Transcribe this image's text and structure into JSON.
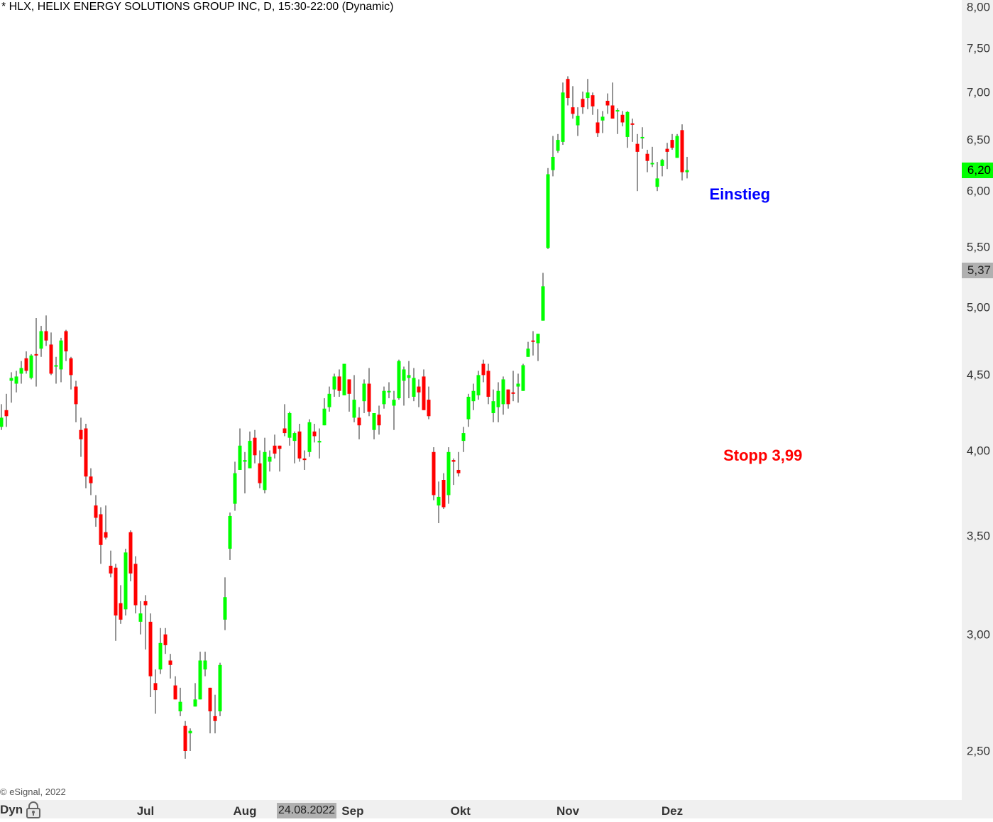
{
  "header": {
    "title": "* HLX, HELIX ENERGY SOLUTIONS GROUP INC, D, 15:30-22:00 (Dynamic)"
  },
  "footer": {
    "copyright": "© eSignal, 2022",
    "mode_label": "Dyn",
    "lock_icon": "lock-icon",
    "crosshair_date": "24.08.2022"
  },
  "colors": {
    "up": "#00ff00",
    "down": "#ff0000",
    "wick": "#707070",
    "einstieg": "#0000ff",
    "stopp": "#ff0000",
    "last_price_bg": "#00ff00",
    "marker_bg": "#b0b0b0"
  },
  "chart_data": {
    "type": "candlestick",
    "title": "* HLX, HELIX ENERGY SOLUTIONS GROUP INC, D, 15:30-22:00 (Dynamic)",
    "y_scale": "log",
    "ylim": [
      2.43,
      8.0
    ],
    "grid": false,
    "y_ticks": [
      {
        "value": 8.0,
        "label": "8,00"
      },
      {
        "value": 7.5,
        "label": "7,50"
      },
      {
        "value": 7.0,
        "label": "7,00"
      },
      {
        "value": 6.5,
        "label": "6,50"
      },
      {
        "value": 6.0,
        "label": "6,00"
      },
      {
        "value": 5.5,
        "label": "5,50"
      },
      {
        "value": 5.0,
        "label": "5,00"
      },
      {
        "value": 4.5,
        "label": "4,50"
      },
      {
        "value": 4.0,
        "label": "4,00"
      },
      {
        "value": 3.5,
        "label": "3,50"
      },
      {
        "value": 3.0,
        "label": "3,00"
      },
      {
        "value": 2.5,
        "label": "2,50"
      }
    ],
    "x_ticks": [
      {
        "label": "Jul",
        "candle": 29
      },
      {
        "label": "Aug",
        "candle": 49
      },
      {
        "label": "Sep",
        "candle": 70.7
      },
      {
        "label": "Okt",
        "candle": 92.4
      },
      {
        "label": "Nov",
        "candle": 114
      },
      {
        "label": "Dez",
        "candle": 135
      }
    ],
    "last_price": {
      "value": 6.2,
      "label": "6,20"
    },
    "marker_price": {
      "value": 5.37,
      "label": "5,37"
    },
    "annotations": [
      {
        "text": "Einstieg",
        "price": 6.0,
        "candle": 142.5,
        "color": "#0000ff"
      },
      {
        "text": "Stopp 3,99",
        "price": 3.99,
        "candle": 145.3,
        "color": "#ff0000"
      }
    ],
    "ohlc": [
      [
        4.15,
        4.3,
        4.13,
        4.21
      ],
      [
        4.26,
        4.37,
        4.15,
        4.22
      ],
      [
        4.46,
        4.52,
        4.31,
        4.48
      ],
      [
        4.44,
        4.53,
        4.38,
        4.49
      ],
      [
        4.51,
        4.6,
        4.44,
        4.55
      ],
      [
        4.62,
        4.67,
        4.51,
        4.53
      ],
      [
        4.48,
        4.65,
        4.47,
        4.64
      ],
      [
        4.65,
        4.92,
        4.42,
        4.64
      ],
      [
        4.69,
        4.86,
        4.63,
        4.82
      ],
      [
        4.82,
        4.94,
        4.71,
        4.75
      ],
      [
        4.72,
        4.81,
        4.5,
        4.51
      ],
      [
        4.56,
        4.63,
        4.44,
        4.57
      ],
      [
        4.54,
        4.77,
        4.45,
        4.75
      ],
      [
        4.82,
        4.83,
        4.6,
        4.67
      ],
      [
        4.62,
        4.63,
        4.4,
        4.5
      ],
      [
        4.42,
        4.46,
        4.18,
        4.3
      ],
      [
        4.13,
        4.21,
        3.96,
        4.07
      ],
      [
        4.14,
        4.17,
        3.77,
        3.84
      ],
      [
        3.84,
        3.89,
        3.73,
        3.8
      ],
      [
        3.67,
        3.73,
        3.55,
        3.6
      ],
      [
        3.62,
        3.66,
        3.35,
        3.45
      ],
      [
        3.52,
        3.67,
        3.48,
        3.49
      ],
      [
        3.34,
        3.42,
        3.28,
        3.3
      ],
      [
        3.33,
        3.35,
        2.97,
        3.09
      ],
      [
        3.15,
        3.24,
        3.05,
        3.07
      ],
      [
        3.12,
        3.43,
        3.09,
        3.41
      ],
      [
        3.52,
        3.53,
        3.26,
        3.3
      ],
      [
        3.35,
        3.39,
        3.1,
        3.14
      ],
      [
        3.06,
        3.16,
        3.0,
        3.1
      ],
      [
        3.16,
        3.19,
        2.93,
        3.14
      ],
      [
        3.06,
        3.1,
        2.72,
        2.81
      ],
      [
        2.78,
        2.84,
        2.65,
        2.75
      ],
      [
        2.84,
        3.03,
        2.82,
        2.96
      ],
      [
        3.0,
        3.03,
        2.91,
        2.95
      ],
      [
        2.88,
        2.91,
        2.8,
        2.86
      ],
      [
        2.77,
        2.81,
        2.71,
        2.71
      ],
      [
        2.66,
        2.76,
        2.64,
        2.7
      ],
      [
        2.6,
        2.62,
        2.47,
        2.5
      ],
      [
        2.57,
        2.59,
        2.5,
        2.58
      ],
      [
        2.68,
        2.78,
        2.68,
        2.71
      ],
      [
        2.71,
        2.92,
        2.71,
        2.88
      ],
      [
        2.84,
        2.92,
        2.81,
        2.88
      ],
      [
        2.76,
        2.76,
        2.57,
        2.66
      ],
      [
        2.64,
        2.73,
        2.57,
        2.62
      ],
      [
        2.66,
        2.87,
        2.64,
        2.86
      ],
      [
        3.07,
        3.28,
        3.02,
        3.18
      ],
      [
        3.43,
        3.63,
        3.37,
        3.61
      ],
      [
        3.68,
        3.93,
        3.64,
        3.86
      ],
      [
        3.88,
        4.14,
        3.88,
        4.03
      ],
      [
        3.93,
        3.99,
        3.74,
        3.94
      ],
      [
        3.89,
        4.12,
        3.89,
        4.06
      ],
      [
        4.08,
        4.13,
        3.92,
        3.97
      ],
      [
        3.92,
        4.0,
        3.77,
        3.8
      ],
      [
        3.76,
        4.08,
        3.74,
        3.99
      ],
      [
        3.93,
        4.0,
        3.87,
        3.96
      ],
      [
        4.03,
        4.1,
        3.95,
        3.98
      ],
      [
        4.03,
        4.03,
        3.87,
        4.01
      ],
      [
        4.14,
        4.3,
        4.09,
        4.11
      ],
      [
        4.08,
        4.25,
        4.03,
        4.24
      ],
      [
        4.06,
        4.12,
        3.92,
        4.11
      ],
      [
        4.12,
        4.17,
        3.93,
        3.95
      ],
      [
        3.95,
        4.0,
        3.88,
        3.94
      ],
      [
        3.99,
        4.2,
        3.96,
        4.18
      ],
      [
        4.12,
        4.17,
        4.05,
        4.09
      ],
      [
        4.05,
        4.14,
        3.95,
        4.06
      ],
      [
        4.16,
        4.34,
        4.16,
        4.27
      ],
      [
        4.28,
        4.42,
        4.25,
        4.37
      ],
      [
        4.4,
        4.51,
        4.35,
        4.49
      ],
      [
        4.49,
        4.54,
        4.35,
        4.39
      ],
      [
        4.36,
        4.58,
        4.36,
        4.58
      ],
      [
        4.47,
        4.47,
        4.25,
        4.37
      ],
      [
        4.21,
        4.5,
        4.18,
        4.33
      ],
      [
        4.21,
        4.28,
        4.07,
        4.16
      ],
      [
        4.32,
        4.47,
        4.24,
        4.44
      ],
      [
        4.44,
        4.55,
        4.22,
        4.25
      ],
      [
        4.13,
        4.24,
        4.07,
        4.24
      ],
      [
        4.23,
        4.29,
        4.1,
        4.16
      ],
      [
        4.3,
        4.42,
        4.27,
        4.39
      ],
      [
        4.38,
        4.45,
        4.34,
        4.39
      ],
      [
        4.29,
        4.39,
        4.13,
        4.33
      ],
      [
        4.34,
        4.61,
        4.33,
        4.6
      ],
      [
        4.46,
        4.56,
        4.29,
        4.54
      ],
      [
        4.48,
        4.6,
        4.34,
        4.5
      ],
      [
        4.35,
        4.55,
        4.32,
        4.48
      ],
      [
        4.42,
        4.47,
        4.28,
        4.38
      ],
      [
        4.49,
        4.54,
        4.26,
        4.26
      ],
      [
        4.33,
        4.42,
        4.2,
        4.22
      ],
      [
        3.99,
        4.02,
        3.7,
        3.73
      ],
      [
        3.67,
        3.81,
        3.57,
        3.72
      ],
      [
        3.82,
        3.86,
        3.65,
        3.66
      ],
      [
        3.73,
        4.02,
        3.68,
        3.99
      ],
      [
        3.94,
        3.95,
        3.79,
        3.93
      ],
      [
        3.88,
        3.99,
        3.84,
        3.86
      ],
      [
        4.06,
        4.15,
        3.99,
        4.11
      ],
      [
        4.2,
        4.37,
        4.15,
        4.35
      ],
      [
        4.32,
        4.44,
        4.26,
        4.39
      ],
      [
        4.36,
        4.53,
        4.33,
        4.5
      ],
      [
        4.58,
        4.61,
        4.45,
        4.5
      ],
      [
        4.53,
        4.58,
        4.3,
        4.35
      ],
      [
        4.24,
        4.4,
        4.18,
        4.32
      ],
      [
        4.28,
        4.45,
        4.18,
        4.39
      ],
      [
        4.3,
        4.49,
        4.23,
        4.47
      ],
      [
        4.4,
        4.4,
        4.27,
        4.3
      ],
      [
        4.38,
        4.53,
        4.32,
        4.37
      ],
      [
        4.42,
        4.51,
        4.31,
        4.44
      ],
      [
        4.39,
        4.58,
        4.39,
        4.57
      ],
      [
        4.63,
        4.74,
        4.63,
        4.69
      ],
      [
        4.75,
        4.82,
        4.64,
        4.74
      ],
      [
        4.73,
        4.8,
        4.6,
        4.8
      ],
      [
        4.9,
        5.28,
        4.9,
        5.17
      ],
      [
        5.49,
        6.22,
        5.48,
        6.16
      ],
      [
        6.2,
        6.54,
        6.14,
        6.33
      ],
      [
        6.39,
        6.56,
        6.37,
        6.5
      ],
      [
        6.48,
        7.11,
        6.45,
        7.0
      ],
      [
        7.15,
        7.18,
        6.86,
        6.94
      ],
      [
        6.84,
        7.07,
        6.72,
        6.77
      ],
      [
        6.65,
        6.84,
        6.54,
        6.75
      ],
      [
        6.93,
        7.01,
        6.77,
        6.84
      ],
      [
        6.94,
        7.15,
        6.82,
        7.0
      ],
      [
        6.97,
        7.0,
        6.76,
        6.85
      ],
      [
        6.68,
        6.82,
        6.53,
        6.57
      ],
      [
        6.7,
        6.8,
        6.57,
        6.74
      ],
      [
        6.91,
        6.99,
        6.77,
        6.86
      ],
      [
        6.86,
        7.11,
        6.72,
        6.72
      ],
      [
        6.8,
        6.83,
        6.56,
        6.81
      ],
      [
        6.76,
        6.8,
        6.64,
        6.68
      ],
      [
        6.53,
        6.8,
        6.42,
        6.79
      ],
      [
        6.67,
        6.72,
        6.48,
        6.66
      ],
      [
        6.46,
        6.56,
        6.0,
        6.38
      ],
      [
        6.52,
        6.63,
        6.41,
        6.53
      ],
      [
        6.36,
        6.4,
        6.18,
        6.29
      ],
      [
        6.26,
        6.43,
        6.23,
        6.27
      ],
      [
        6.04,
        6.28,
        6.0,
        6.12
      ],
      [
        6.24,
        6.31,
        6.14,
        6.3
      ],
      [
        6.41,
        6.47,
        6.21,
        6.38
      ],
      [
        6.5,
        6.56,
        6.4,
        6.42
      ],
      [
        6.32,
        6.56,
        6.32,
        6.54
      ],
      [
        6.6,
        6.66,
        6.1,
        6.18
      ],
      [
        6.18,
        6.33,
        6.12,
        6.2
      ]
    ]
  }
}
